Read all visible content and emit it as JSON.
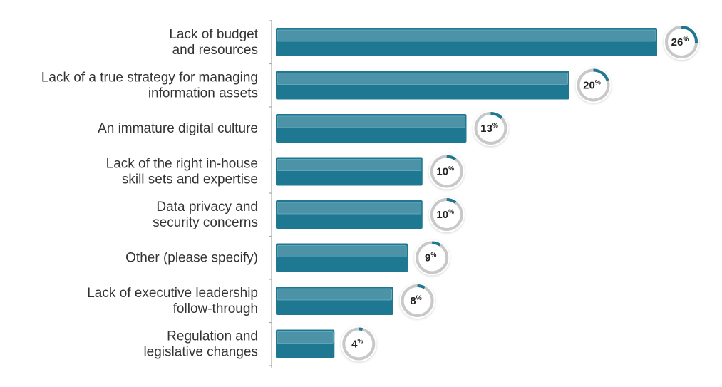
{
  "chart_data": {
    "type": "bar",
    "orientation": "horizontal",
    "categories": [
      [
        "Lack of budget",
        "and resources"
      ],
      [
        "Lack of a true strategy for managing",
        "information assets"
      ],
      [
        "An immature digital culture"
      ],
      [
        "Lack of the right in-house",
        "skill sets and expertise"
      ],
      [
        "Data privacy and",
        "security concerns"
      ],
      [
        "Other (please specify)"
      ],
      [
        "Lack of executive leadership",
        "follow-through"
      ],
      [
        "Regulation and",
        "legislative changes"
      ]
    ],
    "values": [
      26,
      20,
      13,
      10,
      10,
      9,
      8,
      4
    ],
    "value_suffix": "%",
    "xlim": [
      0,
      26
    ],
    "grid": false,
    "legend": "none",
    "colors": {
      "bar": "#1e7891",
      "bar_highlight": "#4d93a8",
      "ring_track": "#c8c8c8",
      "ring_value": "#1e7891",
      "axis": "#aaaaaa"
    }
  }
}
